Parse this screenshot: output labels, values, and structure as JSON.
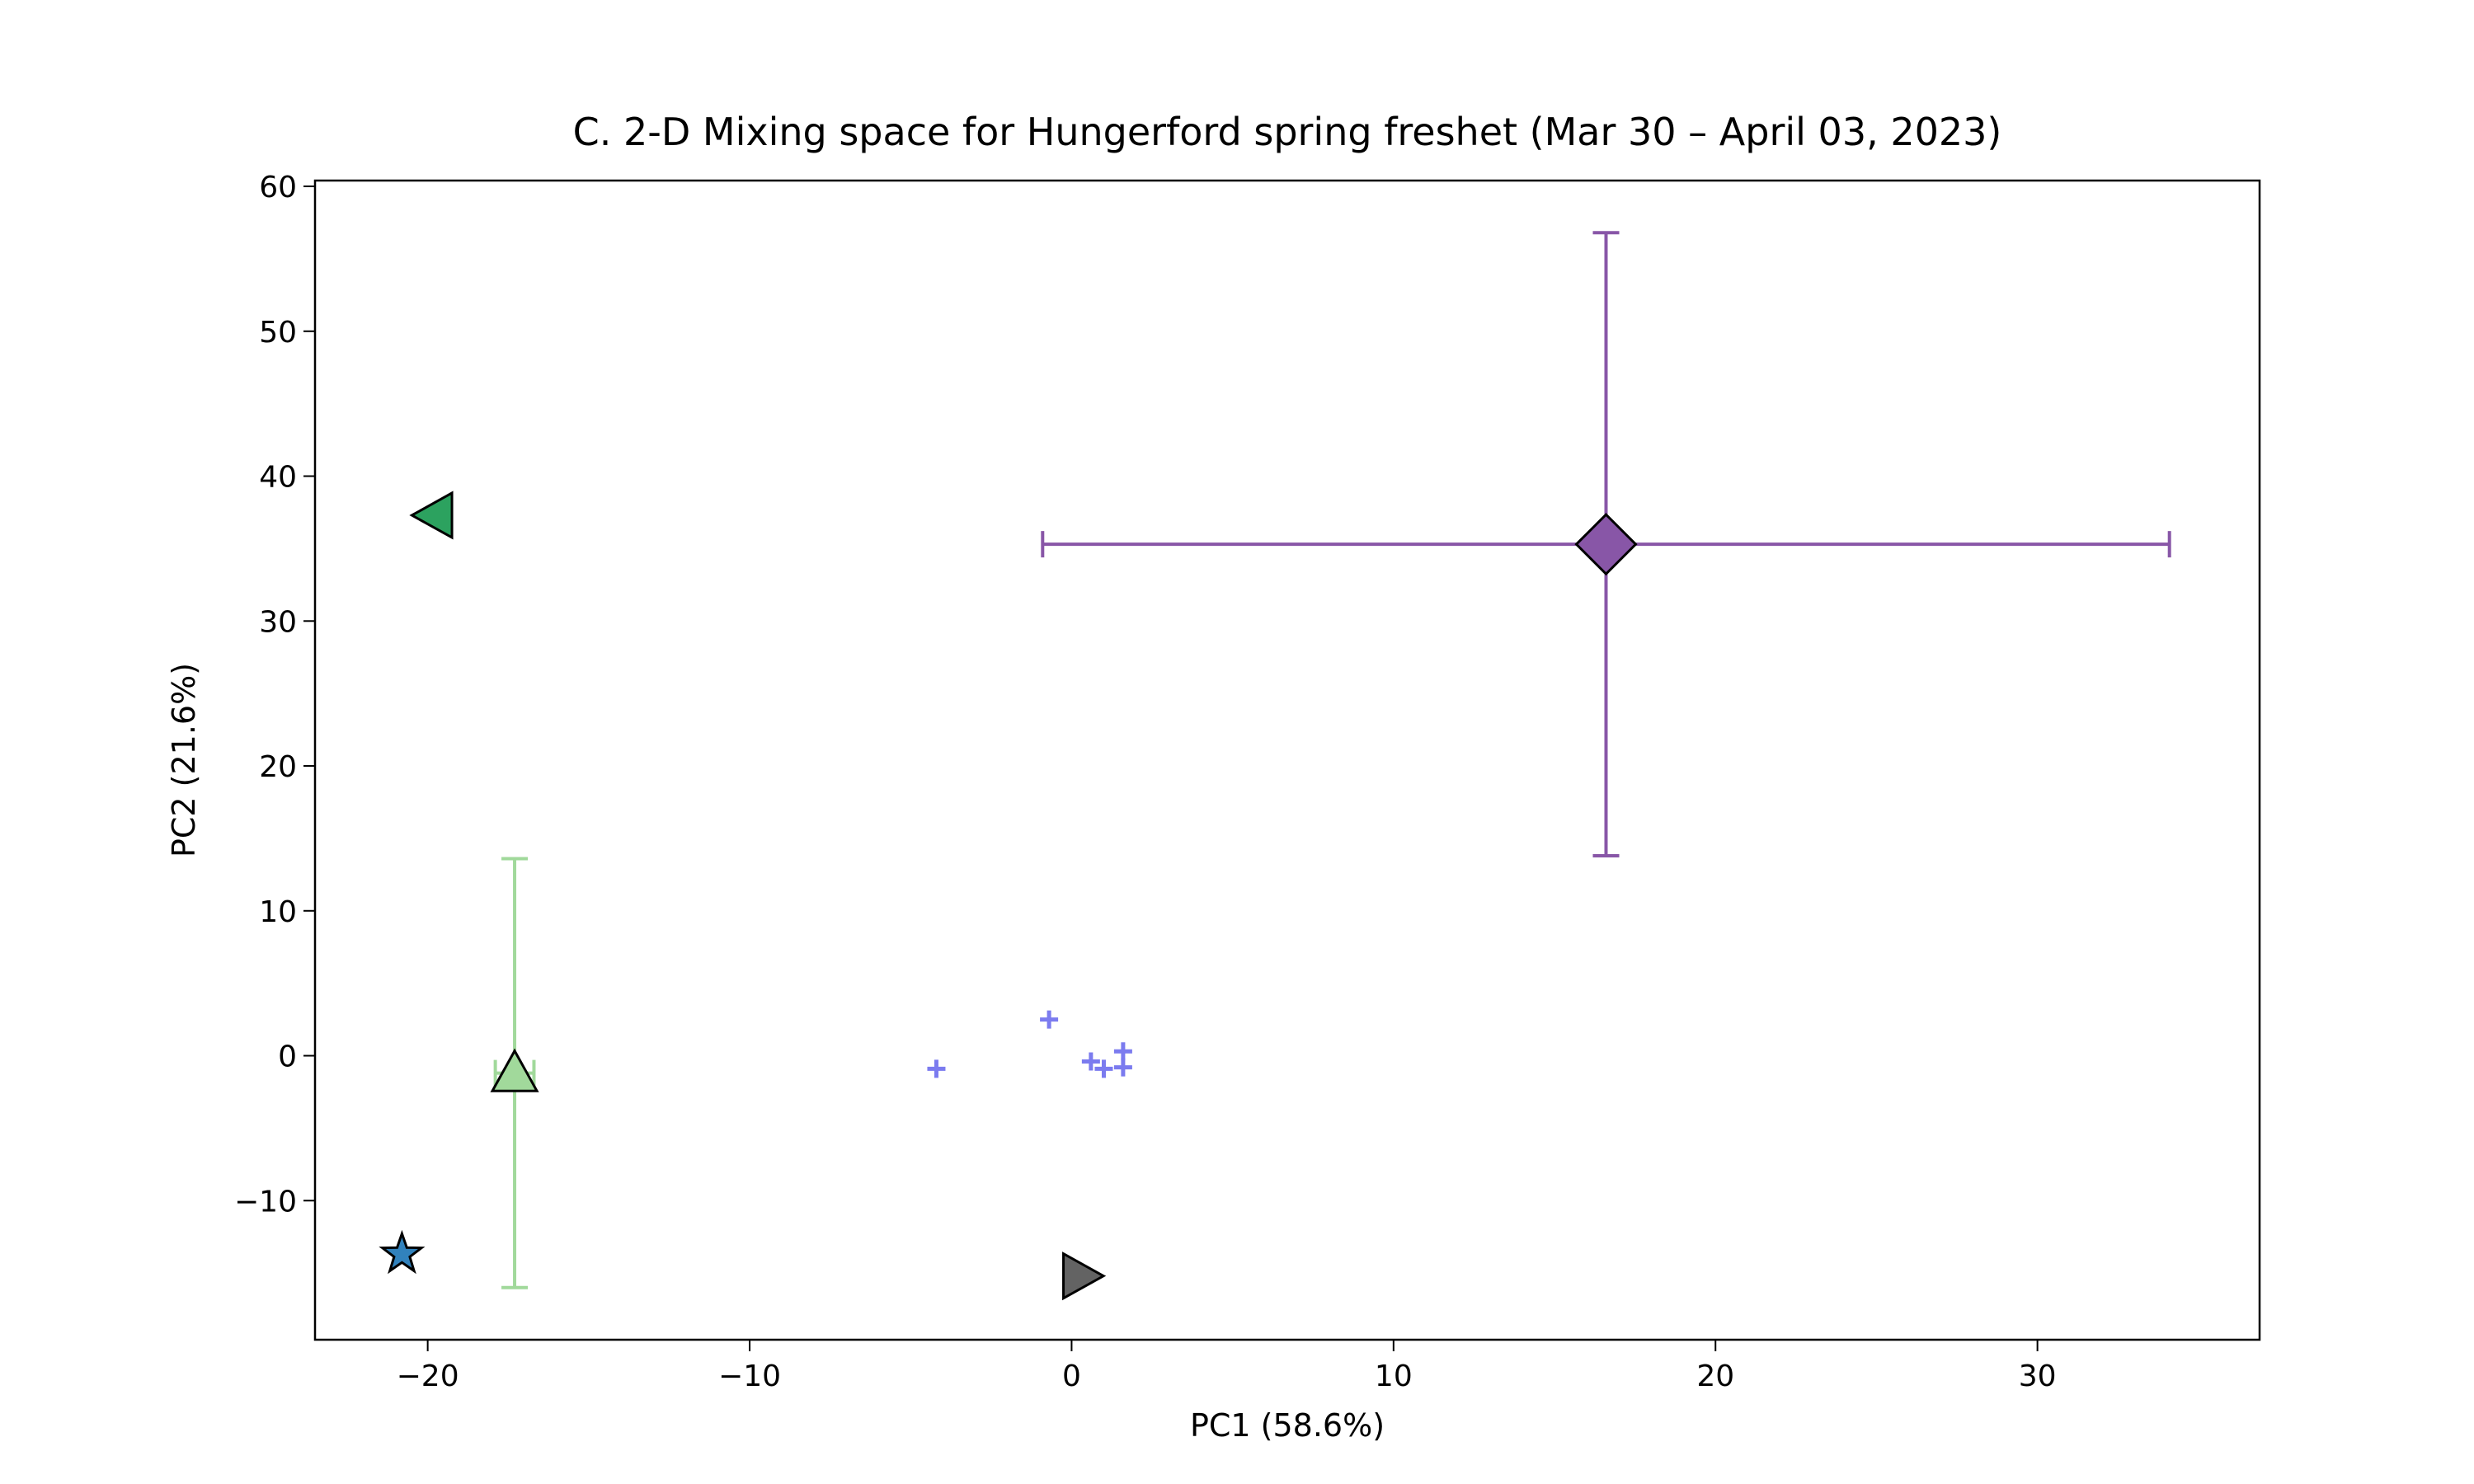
{
  "chart_data": {
    "type": "scatter",
    "title": "C. 2-D Mixing space for Hungerford spring freshet (Mar 30 – April 03, 2023)",
    "x_label": "PC1 (58.6%)",
    "y_label": "PC2 (21.6%)",
    "xlim": [
      -23.5,
      36.9
    ],
    "ylim": [
      -19.6,
      60.4
    ],
    "xticks": [
      {
        "value": -20,
        "label": "−20"
      },
      {
        "value": -10,
        "label": "−10"
      },
      0,
      10,
      20,
      30
    ],
    "yticks": [
      {
        "value": -10,
        "label": "−10"
      },
      0,
      10,
      20,
      30,
      40,
      50,
      60
    ],
    "series": [
      {
        "marker": "plus",
        "color": "#7b7bef",
        "x": [
          -0.7,
          -4.2,
          0.6,
          1.0,
          1.6,
          1.6
        ],
        "y": [
          2.5,
          -0.9,
          -0.4,
          -0.9,
          0.3,
          -0.8
        ]
      },
      {
        "marker": "triangle-left",
        "color": "#2ca25f",
        "x": [
          -19.8
        ],
        "y": [
          37.3
        ]
      },
      {
        "marker": "triangle-up",
        "color": "#a1d99b",
        "x": [
          -17.3
        ],
        "y": [
          -1.2
        ],
        "xerr": [
          0.6
        ],
        "yerr": [
          14.8
        ]
      },
      {
        "marker": "star",
        "color": "#3182bd",
        "x": [
          -20.8
        ],
        "y": [
          -13.7
        ]
      },
      {
        "marker": "triangle-right",
        "color": "#636363",
        "x": [
          0.3
        ],
        "y": [
          -15.2
        ]
      },
      {
        "marker": "diamond",
        "color": "#8856a7",
        "x": [
          16.6
        ],
        "y": [
          35.3
        ],
        "xerr": [
          17.5
        ],
        "yerr": [
          21.5
        ]
      }
    ]
  }
}
